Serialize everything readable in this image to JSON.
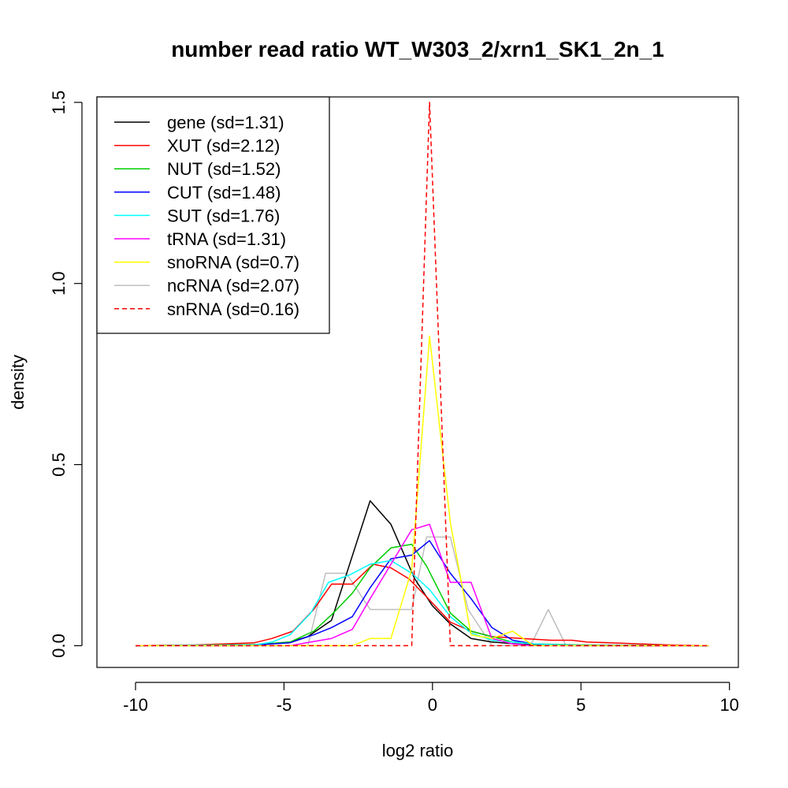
{
  "chart_data": {
    "type": "line",
    "title": "number read ratio WT_W303_2/xrn1_SK1_2n_1",
    "xlabel": "log2 ratio",
    "ylabel": "density",
    "xlim": [
      -11.3,
      10.3
    ],
    "ylim": [
      -0.06,
      1.515
    ],
    "x_ticks": [
      -10,
      -5,
      0,
      5,
      10
    ],
    "x_tick_labels": [
      "-10",
      "-5",
      "0",
      "5",
      "10"
    ],
    "y_ticks": [
      0.0,
      0.5,
      1.0,
      1.5
    ],
    "y_tick_labels": [
      "0.0",
      "0.5",
      "1.0",
      "1.5"
    ],
    "grid": false,
    "legend_position": "top-left",
    "series": [
      {
        "name": "gene (sd=1.31)",
        "color": "#000000",
        "dash": "solid",
        "x": [
          -10,
          -6,
          -4.8,
          -4.2,
          -3.4,
          -2.1,
          -1.4,
          -0.6,
          0,
          0.6,
          1.3,
          2,
          3,
          4,
          5,
          9.3
        ],
        "y": [
          0,
          0.002,
          0.01,
          0.025,
          0.07,
          0.4,
          0.335,
          0.185,
          0.11,
          0.06,
          0.02,
          0.01,
          0.004,
          0.002,
          0,
          0
        ]
      },
      {
        "name": "XUT (sd=2.12)",
        "color": "#ff0000",
        "dash": "solid",
        "x": [
          -10,
          -8,
          -6,
          -5.4,
          -4.7,
          -4,
          -3.4,
          -2.7,
          -2,
          -1.4,
          -0.8,
          -0.2,
          0.6,
          1.3,
          2,
          3,
          4,
          4.7,
          5.2,
          6,
          7,
          8,
          9.3
        ],
        "y": [
          0,
          0.002,
          0.008,
          0.02,
          0.04,
          0.1,
          0.17,
          0.17,
          0.225,
          0.215,
          0.185,
          0.135,
          0.065,
          0.04,
          0.025,
          0.02,
          0.015,
          0.015,
          0.01,
          0.008,
          0.005,
          0.002,
          0
        ]
      },
      {
        "name": "NUT (sd=1.52)",
        "color": "#00cd00",
        "dash": "solid",
        "x": [
          -10,
          -6,
          -4.8,
          -4,
          -3.4,
          -2.7,
          -2.1,
          -1.4,
          -0.7,
          -0.2,
          0.6,
          1.3,
          2,
          2.7,
          3.4,
          4,
          5,
          9.3
        ],
        "y": [
          0,
          0.003,
          0.01,
          0.04,
          0.085,
          0.145,
          0.215,
          0.27,
          0.28,
          0.22,
          0.09,
          0.04,
          0.025,
          0.01,
          0.005,
          0.004,
          0.002,
          0
        ]
      },
      {
        "name": "CUT (sd=1.48)",
        "color": "#0000ff",
        "dash": "solid",
        "x": [
          -10,
          -6,
          -4.8,
          -4,
          -3.4,
          -2.7,
          -2.1,
          -1.4,
          -0.7,
          -0.1,
          0.6,
          1.3,
          2,
          2.7,
          3.4,
          4,
          5,
          9.3
        ],
        "y": [
          0,
          0.002,
          0.008,
          0.03,
          0.05,
          0.08,
          0.16,
          0.24,
          0.25,
          0.29,
          0.2,
          0.13,
          0.05,
          0.015,
          0.005,
          0.003,
          0.001,
          0
        ]
      },
      {
        "name": "SUT (sd=1.76)",
        "color": "#00ffff",
        "dash": "solid",
        "x": [
          -10,
          -6,
          -5.4,
          -4.8,
          -4.1,
          -3.5,
          -2.8,
          -2.1,
          -1.4,
          -0.7,
          -0.1,
          0.6,
          1.3,
          2,
          2.7,
          3.4,
          4,
          5,
          9.3
        ],
        "y": [
          0,
          0.002,
          0.01,
          0.03,
          0.09,
          0.175,
          0.195,
          0.225,
          0.235,
          0.2,
          0.155,
          0.08,
          0.035,
          0.015,
          0.01,
          0.005,
          0.003,
          0.001,
          0
        ]
      },
      {
        "name": "tRNA (sd=1.31)",
        "color": "#ff00ff",
        "dash": "solid",
        "x": [
          -10,
          -4.8,
          -4.1,
          -3.4,
          -2.7,
          -2.1,
          -1.4,
          -0.7,
          -0.1,
          0.6,
          1.3,
          2,
          2.7,
          3.4,
          9.3
        ],
        "y": [
          0,
          0,
          0.01,
          0.02,
          0.045,
          0.13,
          0.225,
          0.32,
          0.335,
          0.175,
          0.175,
          0.02,
          0.005,
          0,
          0
        ]
      },
      {
        "name": "snoRNA (sd=0.7)",
        "color": "#ffff00",
        "dash": "solid",
        "x": [
          -10,
          -2.7,
          -2.1,
          -1.4,
          -0.7,
          -0.1,
          0.6,
          1.3,
          2,
          2.7,
          3.4,
          9.3
        ],
        "y": [
          0,
          0,
          0.02,
          0.02,
          0.21,
          0.855,
          0.34,
          0.03,
          0.02,
          0.04,
          0,
          0
        ]
      },
      {
        "name": "ncRNA (sd=2.07)",
        "color": "#bebebe",
        "dash": "solid",
        "x": [
          -10,
          -4.2,
          -3.6,
          -2.9,
          -2.1,
          -1.4,
          -0.7,
          -0.2,
          0.6,
          1.2,
          2,
          2.7,
          3.3,
          3.9,
          4.5,
          5,
          9.3
        ],
        "y": [
          0,
          0,
          0.2,
          0.2,
          0.1,
          0.1,
          0.1,
          0.3,
          0.3,
          0.1,
          0,
          0,
          0,
          0.1,
          0,
          0,
          0
        ]
      },
      {
        "name": "snRNA (sd=0.16)",
        "color": "#ff0000",
        "dash": "dashed",
        "x": [
          -10,
          -0.7,
          -0.1,
          0.6,
          9.3
        ],
        "y": [
          0,
          0,
          1.5,
          0,
          0
        ]
      }
    ]
  }
}
